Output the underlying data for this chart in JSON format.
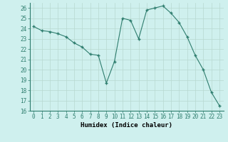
{
  "x": [
    0,
    1,
    2,
    3,
    4,
    5,
    6,
    7,
    8,
    9,
    10,
    11,
    12,
    13,
    14,
    15,
    16,
    17,
    18,
    19,
    20,
    21,
    22,
    23
  ],
  "y": [
    24.2,
    23.8,
    23.7,
    23.5,
    23.2,
    22.6,
    22.2,
    21.5,
    21.4,
    18.7,
    20.8,
    25.0,
    24.8,
    23.0,
    25.8,
    26.0,
    26.2,
    25.5,
    24.6,
    23.2,
    21.4,
    20.0,
    17.8,
    16.5
  ],
  "ylim": [
    16,
    26.5
  ],
  "xlim": [
    -0.5,
    23.5
  ],
  "yticks": [
    16,
    17,
    18,
    19,
    20,
    21,
    22,
    23,
    24,
    25,
    26
  ],
  "xticks": [
    0,
    1,
    2,
    3,
    4,
    5,
    6,
    7,
    8,
    9,
    10,
    11,
    12,
    13,
    14,
    15,
    16,
    17,
    18,
    19,
    20,
    21,
    22,
    23
  ],
  "xlabel": "Humidex (Indice chaleur)",
  "line_color": "#2e7d6e",
  "marker_color": "#2e7d6e",
  "bg_color": "#cff0ee",
  "grid_color": "#b8d8d0",
  "tick_fontsize": 5.5,
  "label_fontsize": 6.5
}
